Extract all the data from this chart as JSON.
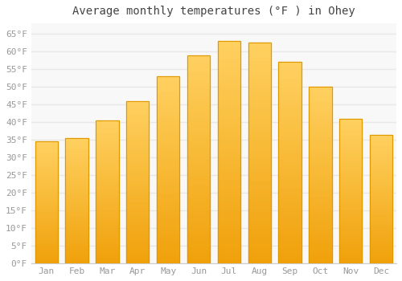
{
  "months": [
    "Jan",
    "Feb",
    "Mar",
    "Apr",
    "May",
    "Jun",
    "Jul",
    "Aug",
    "Sep",
    "Oct",
    "Nov",
    "Dec"
  ],
  "values": [
    34.5,
    35.5,
    40.5,
    46.0,
    53.0,
    59.0,
    63.0,
    62.5,
    57.0,
    50.0,
    41.0,
    36.5
  ],
  "bar_color_top": "#FFD060",
  "bar_color_bottom": "#F0A000",
  "bar_color_edge": "#E09800",
  "background_color": "#FFFFFF",
  "plot_bg_color": "#F8F8F8",
  "grid_color": "#E8E8E8",
  "title": "Average monthly temperatures (°F ) in Ohey",
  "title_fontsize": 10,
  "tick_fontsize": 8,
  "ylim": [
    0,
    68
  ],
  "yticks": [
    0,
    5,
    10,
    15,
    20,
    25,
    30,
    35,
    40,
    45,
    50,
    55,
    60,
    65
  ],
  "ytick_labels": [
    "0°F",
    "5°F",
    "10°F",
    "15°F",
    "20°F",
    "25°F",
    "30°F",
    "35°F",
    "40°F",
    "45°F",
    "50°F",
    "55°F",
    "60°F",
    "65°F"
  ],
  "tick_color": "#999999",
  "title_color": "#444444"
}
